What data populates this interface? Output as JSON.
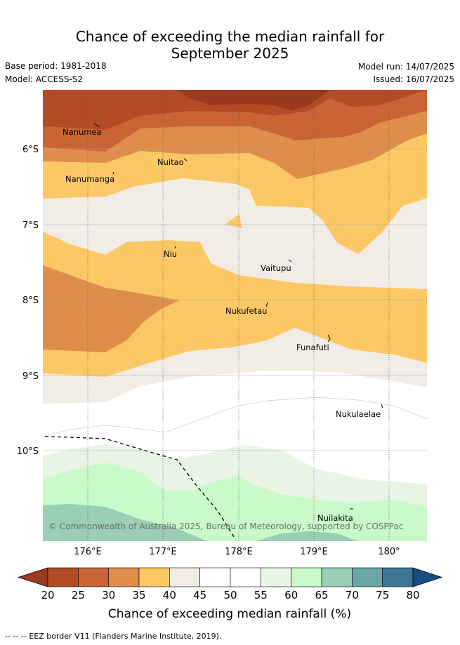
{
  "title": {
    "line1": "Chance of exceeding the median rainfall for",
    "line2": "September 2025"
  },
  "meta": {
    "base_period": "Base period: 1981-2018",
    "model": "Model: ACCESS-S2",
    "model_run": "Model run: 14/07/2025",
    "issued": "Issued: 16/07/2025"
  },
  "axes": {
    "y_ticks": [
      "6°S",
      "7°S",
      "8°S",
      "9°S",
      "10°S"
    ],
    "x_ticks": [
      "176°E",
      "177°E",
      "178°E",
      "179°E",
      "180°"
    ]
  },
  "places": [
    {
      "name": "Nanumea"
    },
    {
      "name": "Nuitao"
    },
    {
      "name": "Nanumanga"
    },
    {
      "name": "Niu"
    },
    {
      "name": "Vaitupu"
    },
    {
      "name": "Nukufetau"
    },
    {
      "name": "Funafuti"
    },
    {
      "name": "Nukulaelae"
    },
    {
      "name": "Nuilakita"
    }
  ],
  "copyright": "© Commonwealth of Australia 2025, Bureau of Meteorology, supported by COSPPac",
  "colorbar": {
    "ticks": [
      "20",
      "25",
      "30",
      "35",
      "40",
      "45",
      "50",
      "55",
      "60",
      "65",
      "70",
      "75",
      "80"
    ],
    "colors": [
      "#9a3a1f",
      "#b34b26",
      "#c96534",
      "#df8e4a",
      "#fcc865",
      "#f1ece6",
      "#ffffff",
      "#ffffff",
      "#e8f4e4",
      "#c8fbc8",
      "#9bceb4",
      "#6aa6a8",
      "#3d7799",
      "#184f86"
    ],
    "label": "Chance of exceeding median rainfall (%)"
  },
  "footnote": "--  --  -- EEZ border V11 (Flanders Marine Institute, 2019)."
}
